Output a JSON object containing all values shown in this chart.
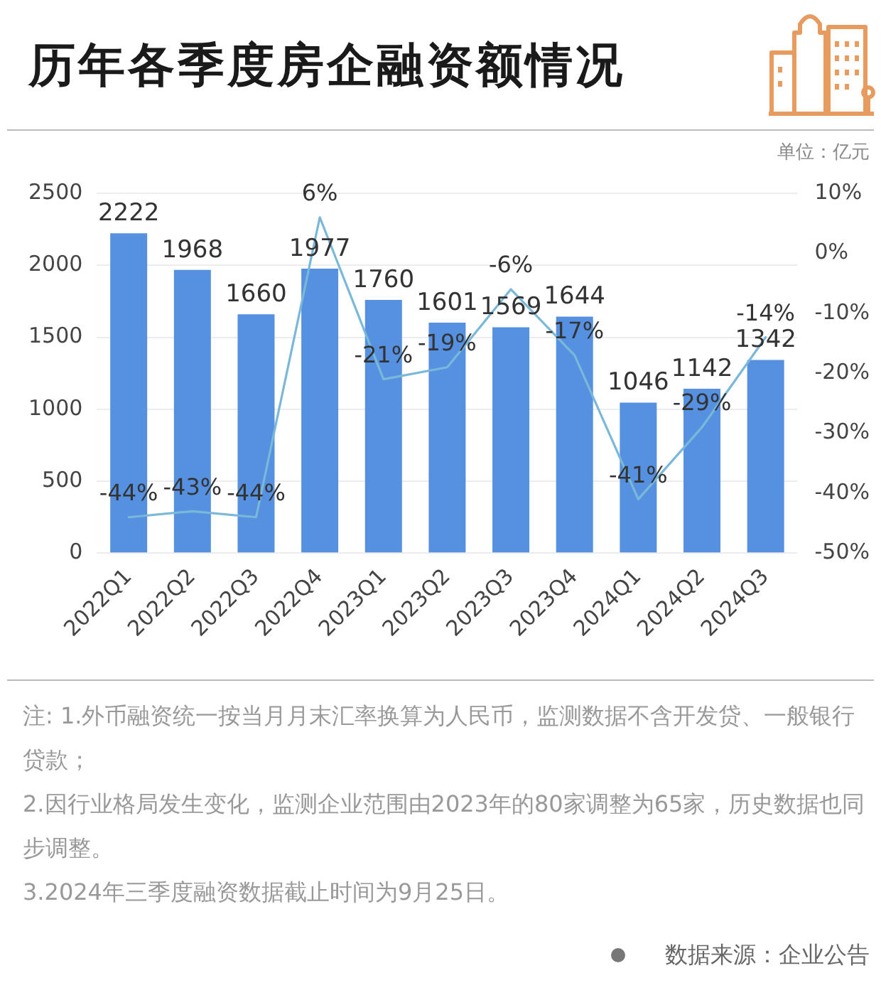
{
  "chart_data": {
    "type": "bar",
    "title": "历年各季度房企融资额情况",
    "categories": [
      "2022Q1",
      "2022Q2",
      "2022Q3",
      "2022Q4",
      "2023Q1",
      "2023Q2",
      "2023Q3",
      "2023Q4",
      "2024Q1",
      "2024Q2",
      "2024Q3"
    ],
    "series": [
      {
        "color": "#5591e0",
        "values": [
          2222,
          1968,
          1660,
          1977,
          1760,
          1601,
          1569,
          1644,
          1046,
          1142,
          1342
        ],
        "value_labels": [
          "2222",
          "1968",
          "1660",
          "1977",
          "1760",
          "1601",
          "1569",
          "1644",
          "1046",
          "1142",
          "1342"
        ]
      },
      {
        "type": "line",
        "axis": "y2",
        "color": "#7ab8d9",
        "values": [
          -44,
          -43,
          -44,
          6,
          -21,
          -19,
          -6,
          -17,
          -41,
          -29,
          -14
        ],
        "value_labels": [
          "-44%",
          "-43%",
          "-44%",
          "6%",
          "-21%",
          "-19%",
          "-6%",
          "-17%",
          "-41%",
          "-29%",
          "-14%"
        ]
      }
    ],
    "ylim": [
      0,
      2500
    ],
    "yticks": [
      0,
      500,
      1000,
      1500,
      2000,
      2500
    ],
    "y2lim": [
      -50,
      10
    ],
    "y2ticks": [
      {
        "value": -50,
        "label": "-50%"
      },
      {
        "value": -40,
        "label": "-40%"
      },
      {
        "value": -30,
        "label": "-30%"
      },
      {
        "value": -20,
        "label": "-20%"
      },
      {
        "value": -10,
        "label": "-10%"
      },
      {
        "value": 0,
        "label": "0%"
      },
      {
        "value": 10,
        "label": "10%"
      }
    ],
    "grid": "y",
    "legend": false,
    "marker": "none",
    "line_style": "solid",
    "annotations": [
      "单位：亿元",
      "注: 1.外币融资统一按当月月末汇率换算为人民币，监测数据不含开发贷、一般银行贷款；",
      "2.因行业格局发生变化，监测企业范围由2023年的80家调整为65家，历史数据也同步调整。",
      "3.2024年三季度融资数据截止时间为9月25日。",
      "数据来源：企业公告"
    ]
  }
}
